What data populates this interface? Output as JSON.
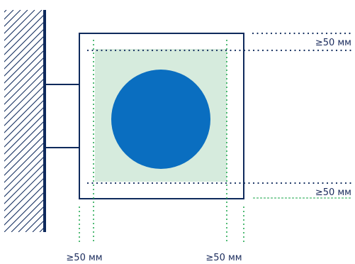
{
  "diagram": {
    "colors": {
      "wall": "#0f2a5c",
      "frame": "#0f2a5c",
      "navy_dots": "#0f2a5c",
      "green_dots": "#1aa54a",
      "fill": "#d6ebdd",
      "circle": "#0a6ec0",
      "text": "#1a2b5c"
    },
    "labels": {
      "top_right": "≥50 мм",
      "bottom_right": "≥50 мм",
      "bottom_left": "≥50 мм",
      "bottom_center": "≥50 мм"
    }
  }
}
